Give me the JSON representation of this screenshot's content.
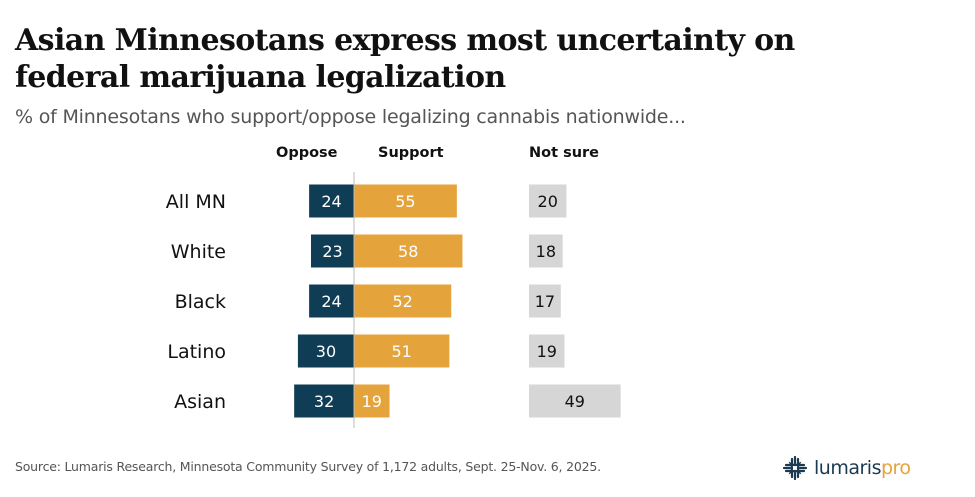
{
  "header": {
    "title": "Asian Minnesotans express most uncertainty on federal marijuana legalization",
    "subtitle": "% of Minnesotans who support/oppose legalizing cannabis nationwide..."
  },
  "columns": {
    "oppose": "Oppose",
    "support": "Support",
    "not_sure": "Not sure"
  },
  "colors": {
    "oppose": "#0f3d56",
    "support": "#e5a33b",
    "not_sure": "#d6d6d6",
    "axis": "#bbbbbb"
  },
  "chart_data": {
    "type": "bar",
    "subtype": "diverging stacked bar with separate not-sure column",
    "title": "Asian Minnesotans express most uncertainty on federal marijuana legalization",
    "subtitle": "% of Minnesotans who support/oppose legalizing cannabis nationwide...",
    "categories": [
      "All MN",
      "White",
      "Black",
      "Latino",
      "Asian"
    ],
    "series": [
      {
        "name": "Oppose",
        "values": [
          24,
          23,
          24,
          30,
          32
        ]
      },
      {
        "name": "Support",
        "values": [
          55,
          58,
          52,
          51,
          19
        ]
      },
      {
        "name": "Not sure",
        "values": [
          20,
          18,
          17,
          19,
          49
        ]
      }
    ],
    "xlabel": "",
    "ylabel": "",
    "legend": "column headers at top",
    "grid": false,
    "units": "percent"
  },
  "footer": {
    "source": "Source: Lumaris Research, Minnesota Community Survey of 1,172 adults, Sept. 25-Nov. 6, 2025.",
    "logo_part1": "lumaris",
    "logo_part2": "pro"
  }
}
